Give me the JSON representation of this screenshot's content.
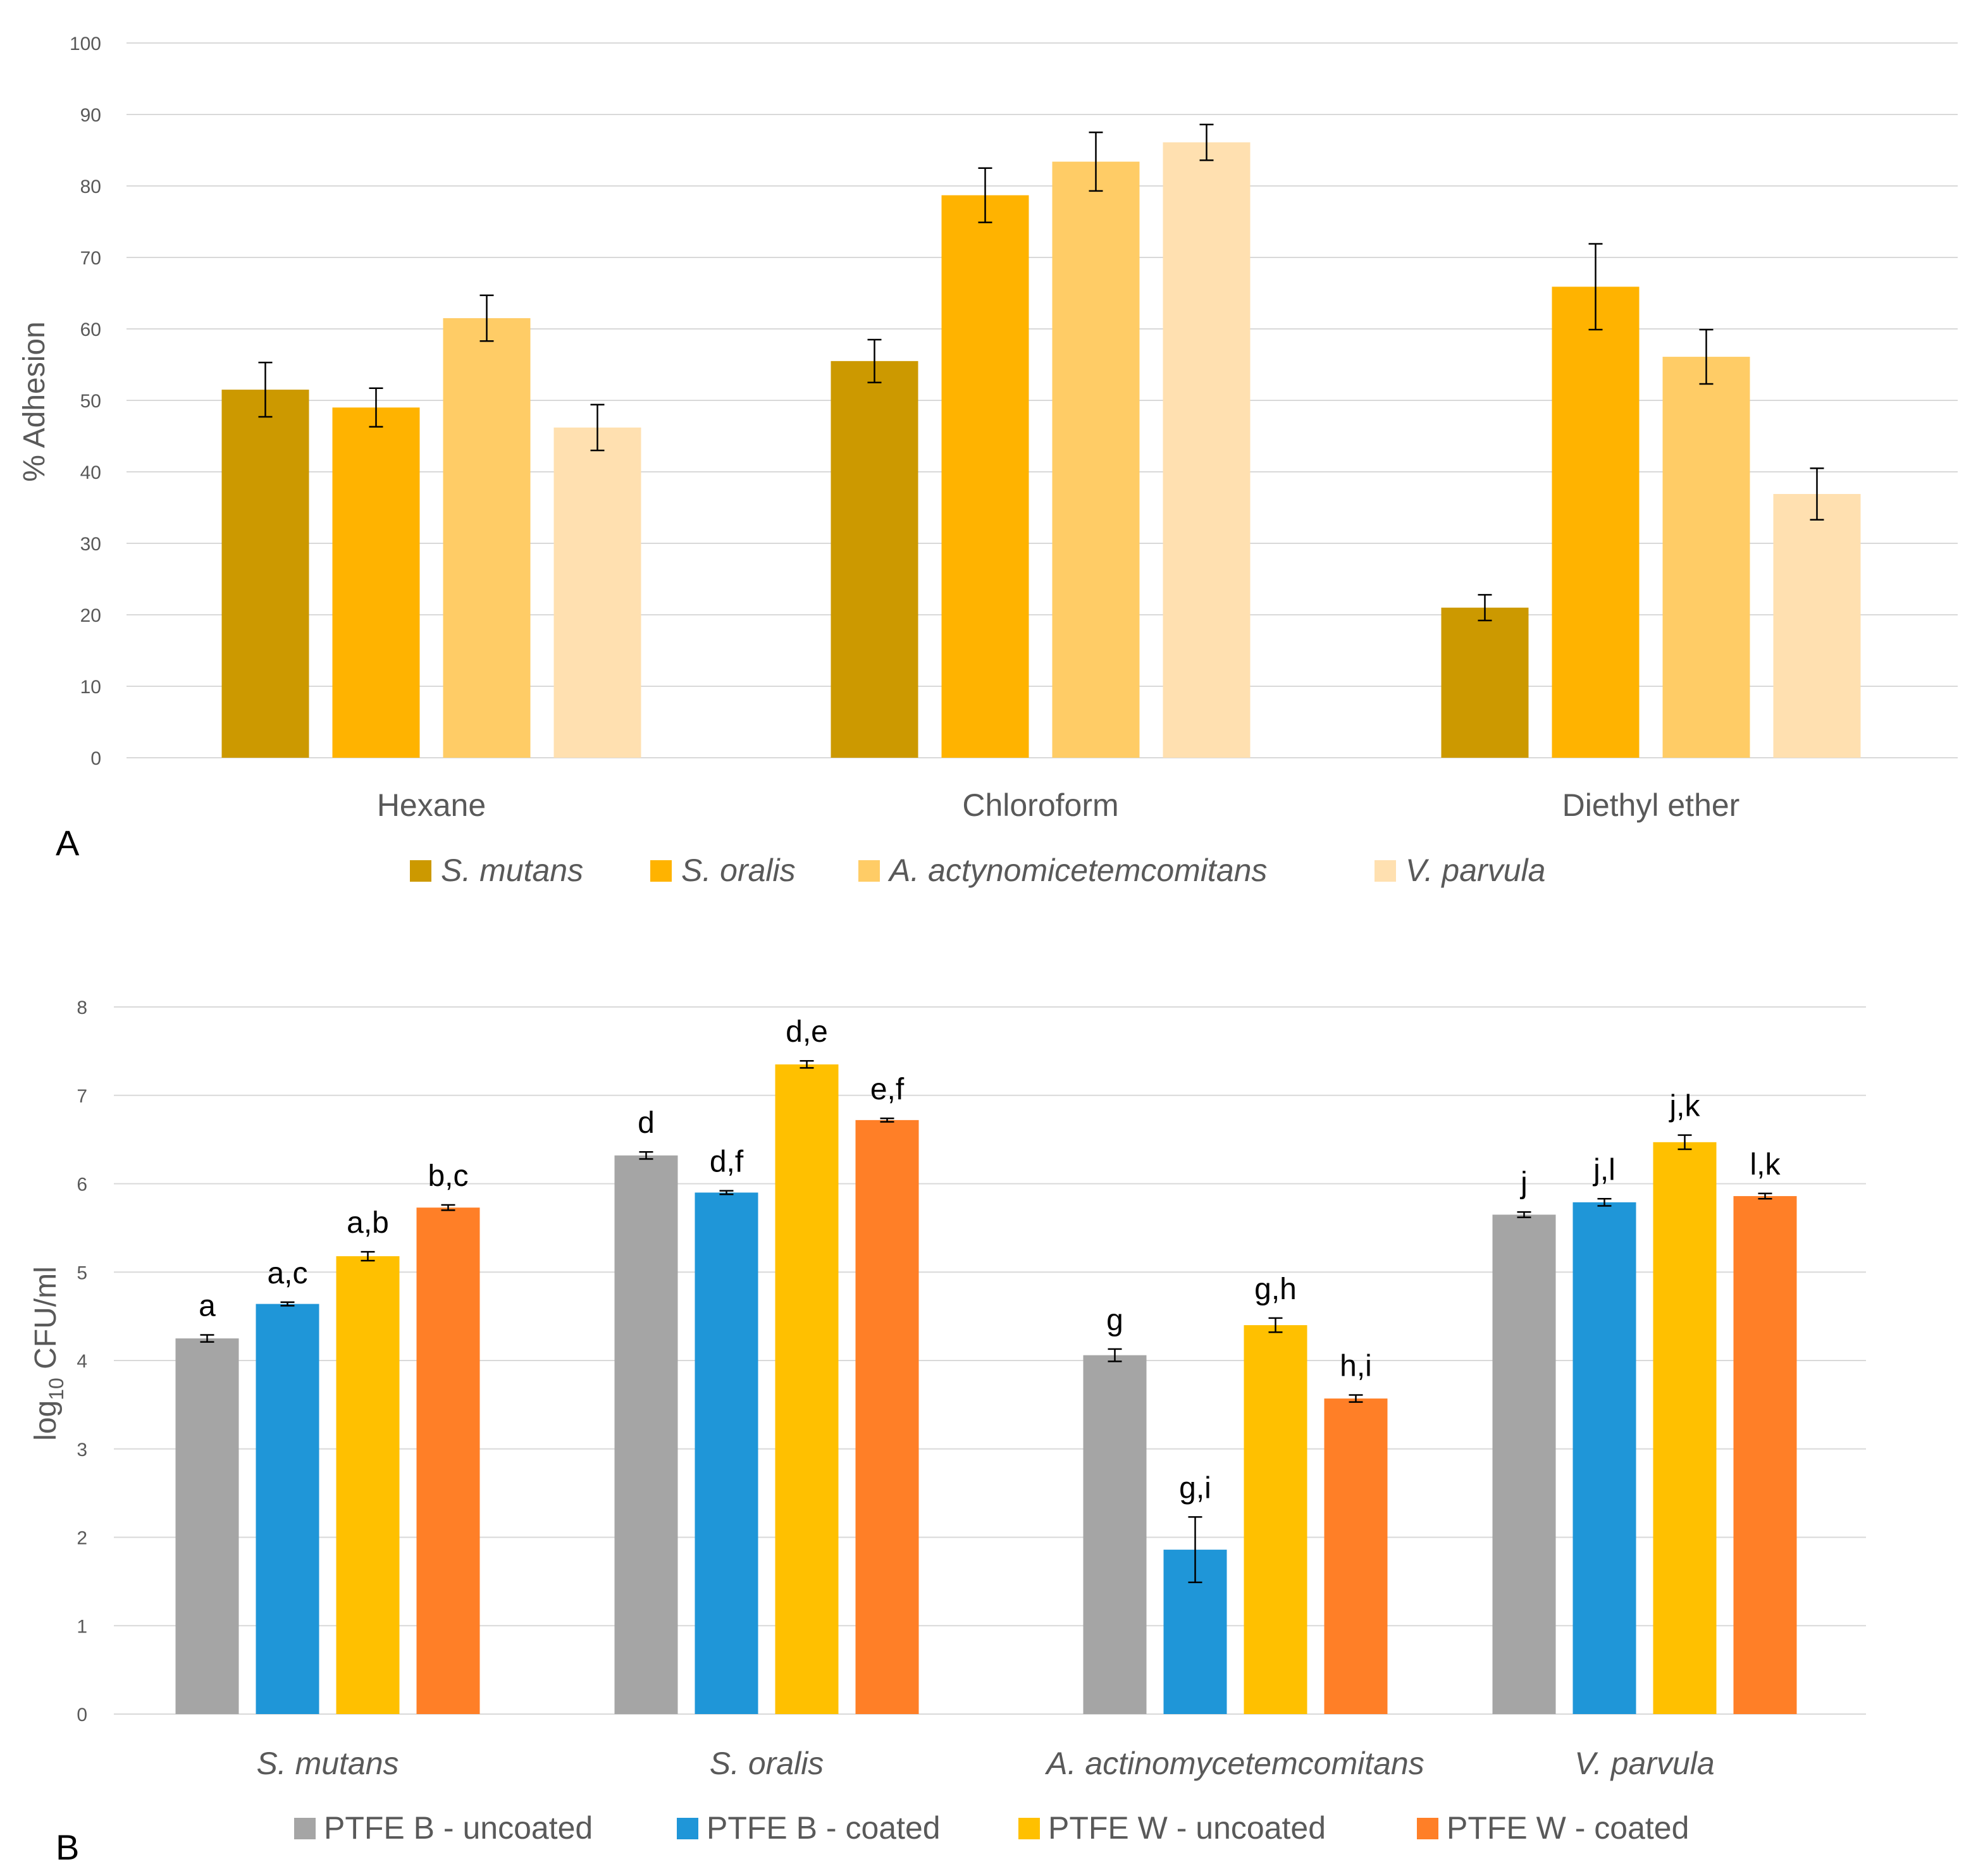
{
  "chart_data": [
    {
      "panel": "A",
      "type": "bar",
      "title": "",
      "xlabel": "",
      "ylabel": "% Adhesion",
      "ylim": [
        0,
        100
      ],
      "yticks": [
        0,
        10,
        20,
        30,
        40,
        50,
        60,
        70,
        80,
        90,
        100
      ],
      "grid": true,
      "legend_position": "bottom",
      "categories": [
        "Hexane",
        "Chloroform",
        "Diethyl ether"
      ],
      "series": [
        {
          "name": "S. mutans",
          "color": "#cc9900",
          "values": [
            51.5,
            55.5,
            21
          ],
          "errors": [
            3.8,
            3,
            1.8
          ]
        },
        {
          "name": "S. oralis",
          "color": "#ffb300",
          "values": [
            49,
            78.7,
            65.9
          ],
          "errors": [
            2.7,
            3.8,
            6
          ]
        },
        {
          "name": "A. actynomicetemcomitans",
          "color": "#ffcc66",
          "values": [
            61.5,
            83.4,
            56.1
          ],
          "errors": [
            3.2,
            4.1,
            3.8
          ]
        },
        {
          "name": "V. parvula",
          "color": "#ffe0b0",
          "values": [
            46.2,
            86.1,
            36.9
          ],
          "errors": [
            3.2,
            2.5,
            3.6
          ]
        }
      ]
    },
    {
      "panel": "B",
      "type": "bar",
      "title": "",
      "xlabel": "",
      "ylabel": "log10 CFU/ml",
      "ylim": [
        0,
        8
      ],
      "yticks": [
        0,
        1,
        2,
        3,
        4,
        5,
        6,
        7,
        8
      ],
      "grid": true,
      "legend_position": "bottom",
      "categories": [
        "S. mutans",
        "S. oralis",
        "A. actinomycetemcomitans",
        "V. parvula"
      ],
      "series": [
        {
          "name": "PTFE B - uncoated",
          "color": "#a5a5a5",
          "values": [
            4.25,
            6.32,
            4.06,
            5.65
          ],
          "errors": [
            0.04,
            0.04,
            0.07,
            0.03
          ],
          "labels": [
            "a",
            "d",
            "g",
            "j"
          ]
        },
        {
          "name": "PTFE B - coated",
          "color": "#1f96d8",
          "values": [
            4.64,
            5.9,
            1.86,
            5.79
          ],
          "errors": [
            0.02,
            0.02,
            0.37,
            0.04
          ],
          "labels": [
            "a,c",
            "d,f",
            "g,i",
            "j,l"
          ]
        },
        {
          "name": "PTFE W - uncoated",
          "color": "#ffc000",
          "values": [
            5.18,
            7.35,
            4.4,
            6.47
          ],
          "errors": [
            0.05,
            0.04,
            0.08,
            0.08
          ],
          "labels": [
            "a,b",
            "d,e",
            "g,h",
            "j,k"
          ]
        },
        {
          "name": "PTFE W - coated",
          "color": "#ff7f27",
          "values": [
            5.73,
            6.72,
            3.57,
            5.86
          ],
          "errors": [
            0.03,
            0.02,
            0.04,
            0.03
          ],
          "labels": [
            "b,c",
            "e,f",
            "h,i",
            "l,k"
          ]
        }
      ]
    }
  ]
}
